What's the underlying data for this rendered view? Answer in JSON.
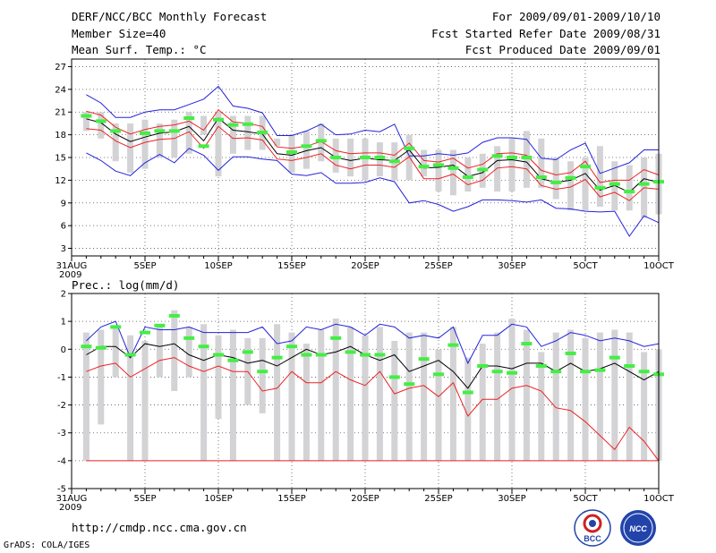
{
  "header": {
    "title": "DERF/NCC/BCC Monthly Forecast",
    "member_size": "Member Size=40",
    "variable": "Mean Surf. Temp.: °C",
    "period": "For 2009/09/01-2009/10/10",
    "fcst_started": "Fcst Started Refer Date 2009/08/31",
    "fcst_produced": "Fcst Produced Date 2009/09/01"
  },
  "footer": {
    "url": "http://cmdp.ncc.cma.gov.cn",
    "grads": "GrADS: COLA/IGES",
    "logo1_text": "BCC",
    "logo2_text": "NCC"
  },
  "colors": {
    "box": "#d3d3d6",
    "obs": "#44ee44",
    "mean": "#000000",
    "inner": "#ee2222",
    "outer": "#2222dd",
    "grid": "#555555"
  },
  "chart_data": [
    {
      "type": "box-ensemble",
      "title": "Mean Surf. Temp.: °C",
      "ylim": [
        2,
        28
      ],
      "yticks": [
        3,
        6,
        9,
        12,
        15,
        18,
        21,
        24,
        27
      ],
      "xlim": [
        0,
        40
      ],
      "xticks": [
        {
          "day": 0,
          "label": "31AUG",
          "label2": "2009"
        },
        {
          "day": 5,
          "label": "5SEP"
        },
        {
          "day": 10,
          "label": "10SEP"
        },
        {
          "day": 15,
          "label": "15SEP"
        },
        {
          "day": 20,
          "label": "20SEP"
        },
        {
          "day": 25,
          "label": "25SEP"
        },
        {
          "day": 30,
          "label": "30SEP"
        },
        {
          "day": 35,
          "label": "5OCT"
        },
        {
          "day": 40,
          "label": "10OCT"
        }
      ],
      "days": [
        1,
        2,
        3,
        4,
        5,
        6,
        7,
        8,
        9,
        10,
        11,
        12,
        13,
        14,
        15,
        16,
        17,
        18,
        19,
        20,
        21,
        22,
        23,
        24,
        25,
        26,
        27,
        28,
        29,
        30,
        31,
        32,
        33,
        34,
        35,
        36,
        37,
        38,
        39,
        40
      ],
      "series": [
        {
          "name": "box_low",
          "values": [
            18.5,
            17.5,
            14.5,
            13,
            13.5,
            15,
            15,
            15.5,
            18,
            12.5,
            15.5,
            16,
            16,
            16.5,
            13,
            13.5,
            14.5,
            13,
            12.5,
            12,
            12.5,
            12,
            12,
            12.5,
            10.5,
            10,
            10.5,
            11,
            10.5,
            10.5,
            11,
            11,
            9.5,
            8,
            8,
            8.5,
            8,
            8,
            7,
            7.5
          ]
        },
        {
          "name": "box_high",
          "values": [
            21,
            21,
            19.5,
            19.5,
            20,
            19.5,
            20,
            21,
            20.5,
            21,
            20.5,
            20.5,
            20.5,
            17.5,
            18,
            18.5,
            19.5,
            17.5,
            17.5,
            17.5,
            17,
            17,
            18,
            16,
            16,
            16,
            15,
            15.5,
            16.5,
            17.5,
            18.5,
            17.5,
            15,
            14.5,
            15,
            16.5,
            14.5,
            14,
            15,
            15.5
          ]
        },
        {
          "name": "outer_high",
          "values": [
            23.3,
            22.2,
            20.3,
            20.3,
            21,
            21.3,
            21.3,
            22,
            22.7,
            24.4,
            21.8,
            21.5,
            20.9,
            17.9,
            17.9,
            18.5,
            19.4,
            18,
            18.1,
            18.6,
            18.4,
            19.4,
            15.2,
            15.2,
            15.5,
            15.3,
            15.6,
            17,
            17.6,
            17.6,
            17.4,
            14.9,
            14.7,
            16,
            16.9,
            12.9,
            13.6,
            14.3,
            16,
            16
          ]
        },
        {
          "name": "outer_low",
          "values": [
            15.6,
            14.6,
            13.2,
            12.6,
            14.3,
            15.4,
            14.3,
            16.2,
            15.3,
            13.3,
            15.1,
            15.1,
            14.8,
            14.6,
            12.8,
            12.6,
            13,
            11.6,
            11.6,
            11.7,
            12.3,
            11.8,
            9,
            9.3,
            8.8,
            7.9,
            8.5,
            9.4,
            9.4,
            9.3,
            9.1,
            9.4,
            8.3,
            8.2,
            7.9,
            7.8,
            7.9,
            4.6,
            7.3,
            6.4
          ]
        },
        {
          "name": "inner_high",
          "values": [
            21.1,
            20.6,
            19,
            18.1,
            18.7,
            19.1,
            19.3,
            19.8,
            18.6,
            21.3,
            19.7,
            19.5,
            19.1,
            16.4,
            16.2,
            16.5,
            17.1,
            15.9,
            15.5,
            15.6,
            15.6,
            15.3,
            16.9,
            14.6,
            14.4,
            14.9,
            13.6,
            14.1,
            15.5,
            15.6,
            15.3,
            13.3,
            12.7,
            13,
            14.5,
            11.7,
            12,
            12,
            13.4,
            12.7
          ]
        },
        {
          "name": "mean",
          "values": [
            20.1,
            19.6,
            18.1,
            17.1,
            17.7,
            18.2,
            18.4,
            19.1,
            17.2,
            20.2,
            18.6,
            18.4,
            18.1,
            15.5,
            15.3,
            15.9,
            16.3,
            15,
            14.6,
            14.9,
            14.7,
            14.6,
            16,
            13.6,
            13.7,
            14,
            12.5,
            13,
            14.6,
            14.7,
            14.4,
            12.2,
            11.7,
            12,
            12.9,
            10.7,
            11.3,
            10.4,
            12.2,
            11.7
          ]
        },
        {
          "name": "inner_low",
          "values": [
            18.8,
            18.6,
            17.2,
            16.3,
            17,
            17.4,
            17.5,
            18.4,
            16.2,
            19.1,
            17.5,
            17.6,
            17.3,
            14.8,
            14.6,
            15,
            15.5,
            14,
            13.5,
            14,
            14,
            13.7,
            15.1,
            12.2,
            12.2,
            12.8,
            11.4,
            12,
            13.6,
            13.8,
            13.5,
            11.3,
            10.8,
            11.1,
            12.1,
            9.8,
            10.4,
            9.3,
            11,
            10.8
          ]
        },
        {
          "name": "observed",
          "values": [
            20.5,
            19.8,
            18.5,
            null,
            18.2,
            18.5,
            18.5,
            20.2,
            16.5,
            20,
            19.3,
            19.4,
            18.3,
            null,
            15.7,
            16.5,
            17.2,
            15,
            null,
            15,
            15,
            14.5,
            16.2,
            13.8,
            14,
            13.6,
            12.4,
            13.4,
            15.2,
            15,
            15,
            12.4,
            11.7,
            12.3,
            13.8,
            11,
            11.5,
            10.5,
            11.5,
            11.8
          ]
        }
      ]
    },
    {
      "type": "box-ensemble",
      "title": "Prec.: log(mm/d)",
      "ylim": [
        -5,
        2
      ],
      "yticks": [
        -5,
        -4,
        -3,
        -2,
        -1,
        0,
        1,
        2
      ],
      "xlim": [
        0,
        40
      ],
      "xticks": [
        {
          "day": 0,
          "label": "31AUG",
          "label2": "2009"
        },
        {
          "day": 5,
          "label": "5SEP"
        },
        {
          "day": 10,
          "label": "10SEP"
        },
        {
          "day": 15,
          "label": "15SEP"
        },
        {
          "day": 20,
          "label": "20SEP"
        },
        {
          "day": 25,
          "label": "25SEP"
        },
        {
          "day": 30,
          "label": "30SEP"
        },
        {
          "day": 35,
          "label": "5OCT"
        },
        {
          "day": 40,
          "label": "10OCT"
        }
      ],
      "days": [
        1,
        2,
        3,
        4,
        5,
        6,
        7,
        8,
        9,
        10,
        11,
        12,
        13,
        14,
        15,
        16,
        17,
        18,
        19,
        20,
        21,
        22,
        23,
        24,
        25,
        26,
        27,
        28,
        29,
        30,
        31,
        32,
        33,
        34,
        35,
        36,
        37,
        38,
        39,
        40
      ],
      "series": [
        {
          "name": "box_low",
          "values": [
            -4,
            -2.7,
            -1,
            -4,
            -4,
            -1,
            -1.5,
            -1,
            -4,
            -2.5,
            -4,
            -2,
            -2.3,
            -4,
            -4,
            -4,
            -4,
            -4,
            -4,
            -4,
            -4,
            -4,
            -4,
            -4,
            -4,
            -4,
            -4,
            -4,
            -4,
            -4,
            -4,
            -4,
            -4,
            -4,
            -4,
            -4,
            -4,
            -4,
            -4,
            -4
          ]
        },
        {
          "name": "box_high",
          "values": [
            0.6,
            0.7,
            0.8,
            0.5,
            0.3,
            0.9,
            1.4,
            0.8,
            0.9,
            0.5,
            0.7,
            0.4,
            0.4,
            0.9,
            0.6,
            0.2,
            0.7,
            1.1,
            0.8,
            0.5,
            0.8,
            0.3,
            0.6,
            0.6,
            0,
            0.8,
            -0.3,
            0.2,
            0.6,
            1.1,
            0.7,
            -0.1,
            0.6,
            0.7,
            0.4,
            0.6,
            0.7,
            0.6,
            -0.1,
            0
          ]
        },
        {
          "name": "outer_high",
          "values": [
            0.3,
            0.8,
            1.0,
            -0.3,
            0.8,
            0.7,
            0.7,
            0.8,
            0.6,
            0.6,
            0.6,
            0.6,
            0.8,
            0.2,
            0.3,
            0.8,
            0.7,
            0.9,
            0.8,
            0.5,
            0.9,
            0.8,
            0.4,
            0.5,
            0.4,
            0.8,
            -0.5,
            0.5,
            0.5,
            0.9,
            0.8,
            0.1,
            0.3,
            0.6,
            0.5,
            0.3,
            0.4,
            0.3,
            0.1,
            0.2
          ]
        },
        {
          "name": "mean",
          "values": [
            -0.2,
            0.1,
            0.1,
            -0.3,
            0.2,
            0.1,
            0.2,
            -0.2,
            -0.4,
            -0.2,
            -0.3,
            -0.5,
            -0.4,
            -0.6,
            -0.3,
            0,
            -0.2,
            -0.1,
            0.1,
            -0.2,
            -0.4,
            -0.2,
            -0.8,
            -0.6,
            -0.4,
            -0.8,
            -1.4,
            -0.6,
            -0.6,
            -0.7,
            -0.5,
            -0.5,
            -0.8,
            -0.5,
            -0.8,
            -0.7,
            -0.5,
            -0.8,
            -1.1,
            -0.8
          ]
        },
        {
          "name": "inner_low",
          "values": [
            -0.8,
            -0.6,
            -0.5,
            -1,
            -0.7,
            -0.4,
            -0.3,
            -0.6,
            -0.8,
            -0.6,
            -0.8,
            -0.8,
            -1.5,
            -1.4,
            -0.8,
            -1.2,
            -1.2,
            -0.8,
            -1.1,
            -1.3,
            -0.8,
            -1.6,
            -1.4,
            -1.3,
            -1.7,
            -1.2,
            -2.4,
            -1.8,
            -1.8,
            -1.4,
            -1.3,
            -1.5,
            -2.1,
            -2.2,
            -2.6,
            -3.1,
            -3.6,
            -2.8,
            -3.3,
            -4
          ]
        },
        {
          "name": "outer_low",
          "values": [
            -4,
            -4,
            -4,
            -4,
            -4,
            -4,
            -4,
            -4,
            -4,
            -4,
            -4,
            -4,
            -4,
            -4,
            -4,
            -4,
            -4,
            -4,
            -4,
            -4,
            -4,
            -4,
            -4,
            -4,
            -4,
            -4,
            -4,
            -4,
            -4,
            -4,
            -4,
            -4,
            -4,
            -4,
            -4,
            -4,
            -4,
            -4,
            -4,
            -4
          ]
        },
        {
          "name": "observed",
          "values": [
            0.1,
            0.05,
            0.8,
            -0.2,
            0.6,
            0.85,
            1.2,
            0.4,
            0.1,
            -0.2,
            -0.4,
            -0.1,
            -0.8,
            -0.3,
            0.1,
            -0.2,
            -0.2,
            0.4,
            -0.1,
            -0.2,
            -0.2,
            -1.0,
            -1.25,
            -0.35,
            -0.9,
            0.15,
            -1.55,
            -0.6,
            -0.8,
            -0.85,
            0.2,
            -0.6,
            -0.8,
            -0.15,
            -0.8,
            -0.75,
            -0.3,
            -0.6,
            -0.8,
            -0.9
          ]
        }
      ]
    }
  ]
}
